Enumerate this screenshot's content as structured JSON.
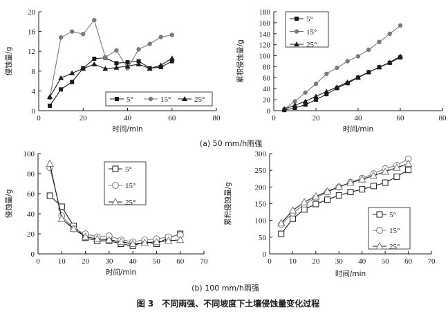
{
  "figure_title": "图 3　不同雨强、不同坡度下土壤侵蚀量变化过程",
  "panels": [
    {
      "label": "(a) 50 mm/h雨强"
    },
    {
      "label": "(b) 100 mm/h雨强"
    }
  ],
  "colors": {
    "dark": "#1a1a1a",
    "gray": "#7a7a7a",
    "white": "#ffffff"
  },
  "chart_data": [
    {
      "id": "a-left",
      "type": "line",
      "panel": "a",
      "xlabel": "时间/min",
      "ylabel": "侵蚀量/g",
      "xlim": [
        0,
        80
      ],
      "ylim": [
        0,
        20
      ],
      "xticks": [
        0,
        20,
        40,
        60,
        80
      ],
      "yticks": [
        0,
        4,
        8,
        12,
        16,
        20
      ],
      "legend": "bottom-right",
      "legend_orientation": "horizontal",
      "series": [
        {
          "name": "5°",
          "marker": "square-filled",
          "x": [
            5,
            10,
            15,
            20,
            25,
            30,
            35,
            40,
            45,
            50,
            55,
            60
          ],
          "y": [
            1.0,
            4.3,
            5.8,
            8.6,
            10.5,
            10.7,
            9.6,
            9.8,
            10.0,
            8.6,
            8.8,
            10.0
          ]
        },
        {
          "name": "15°",
          "marker": "circle-gray",
          "x": [
            5,
            10,
            15,
            20,
            25,
            30,
            35,
            40,
            45,
            50,
            55,
            60
          ],
          "y": [
            2.6,
            14.8,
            16.0,
            15.5,
            18.3,
            10.8,
            12.2,
            8.6,
            12.4,
            13.5,
            14.9,
            15.3
          ]
        },
        {
          "name": "25°",
          "marker": "triangle-filled",
          "x": [
            5,
            10,
            15,
            20,
            25,
            30,
            35,
            40,
            45,
            50,
            55,
            60
          ],
          "y": [
            2.8,
            6.6,
            7.6,
            8.5,
            9.4,
            8.5,
            8.7,
            9.0,
            9.4,
            8.5,
            9.2,
            10.6
          ]
        }
      ]
    },
    {
      "id": "a-right",
      "type": "line",
      "panel": "a",
      "xlabel": "时间/min",
      "ylabel": "累积侵蚀量/g",
      "xlim": [
        0,
        80
      ],
      "ylim": [
        0,
        180
      ],
      "xticks": [
        0,
        20,
        40,
        60,
        80
      ],
      "yticks": [
        0,
        20,
        40,
        60,
        80,
        100,
        120,
        140,
        160,
        180
      ],
      "legend": "top-left",
      "legend_orientation": "vertical",
      "series": [
        {
          "name": "5°",
          "marker": "square-filled",
          "x": [
            5,
            10,
            15,
            20,
            25,
            30,
            35,
            40,
            45,
            50,
            55,
            60
          ],
          "y": [
            1,
            5,
            11,
            20,
            30,
            41,
            50,
            60,
            70,
            79,
            87,
            97
          ]
        },
        {
          "name": "15°",
          "marker": "circle-gray",
          "x": [
            5,
            10,
            15,
            20,
            25,
            30,
            35,
            40,
            45,
            50,
            55,
            60
          ],
          "y": [
            3,
            17,
            33,
            49,
            67,
            78,
            90,
            99,
            111,
            125,
            140,
            155
          ]
        },
        {
          "name": "25°",
          "marker": "triangle-filled",
          "x": [
            5,
            10,
            15,
            20,
            25,
            30,
            35,
            40,
            45,
            50,
            55,
            60
          ],
          "y": [
            3,
            10,
            17,
            26,
            35,
            43,
            52,
            61,
            70,
            79,
            88,
            99
          ]
        }
      ]
    },
    {
      "id": "b-left",
      "type": "line",
      "panel": "b",
      "xlabel": "时间/min",
      "ylabel": "侵蚀量/g",
      "xlim": [
        0,
        70
      ],
      "ylim": [
        0,
        100
      ],
      "xticks": [
        0,
        10,
        20,
        30,
        40,
        50,
        60,
        70
      ],
      "yticks": [
        0,
        20,
        40,
        60,
        80,
        100
      ],
      "legend": "top-right",
      "legend_orientation": "vertical",
      "series": [
        {
          "name": "5°",
          "marker": "square-open",
          "x": [
            5,
            10,
            15,
            20,
            25,
            30,
            35,
            40,
            45,
            50,
            55,
            60
          ],
          "y": [
            58,
            47,
            28,
            16,
            13,
            13,
            10,
            8,
            12,
            10,
            16,
            20
          ]
        },
        {
          "name": "15°",
          "marker": "circle-open",
          "x": [
            5,
            10,
            15,
            20,
            25,
            30,
            35,
            40,
            45,
            50,
            55,
            60
          ],
          "y": [
            86,
            38,
            25,
            20,
            17,
            18,
            14,
            12,
            14,
            15,
            17,
            19
          ]
        },
        {
          "name": "25°",
          "marker": "triangle-open",
          "x": [
            5,
            10,
            15,
            20,
            25,
            30,
            35,
            40,
            45,
            50,
            55,
            60
          ],
          "y": [
            90,
            35,
            25,
            17,
            15,
            14,
            12,
            10,
            11,
            12,
            13,
            14
          ]
        }
      ]
    },
    {
      "id": "b-right",
      "type": "line",
      "panel": "b",
      "xlabel": "时间/min",
      "ylabel": "累积侵蚀量/g",
      "xlim": [
        0,
        70
      ],
      "ylim": [
        0,
        300
      ],
      "xticks": [
        0,
        10,
        20,
        30,
        40,
        50,
        60,
        70
      ],
      "yticks": [
        0,
        50,
        100,
        150,
        200,
        250,
        300
      ],
      "legend": "bottom-right",
      "legend_orientation": "vertical",
      "series": [
        {
          "name": "5°",
          "marker": "square-open",
          "x": [
            5,
            10,
            15,
            20,
            25,
            30,
            35,
            40,
            45,
            50,
            55,
            60
          ],
          "y": [
            60,
            105,
            133,
            149,
            162,
            175,
            185,
            193,
            203,
            213,
            231,
            251
          ]
        },
        {
          "name": "15°",
          "marker": "circle-open",
          "x": [
            5,
            10,
            15,
            20,
            25,
            30,
            35,
            40,
            45,
            50,
            55,
            60
          ],
          "y": [
            88,
            122,
            148,
            168,
            185,
            200,
            214,
            226,
            240,
            255,
            265,
            284
          ]
        },
        {
          "name": "25°",
          "marker": "triangle-open",
          "x": [
            5,
            10,
            15,
            20,
            25,
            30,
            35,
            40,
            45,
            50,
            55,
            60
          ],
          "y": [
            92,
            130,
            155,
            172,
            187,
            201,
            213,
            223,
            234,
            246,
            258,
            270
          ]
        }
      ]
    }
  ]
}
